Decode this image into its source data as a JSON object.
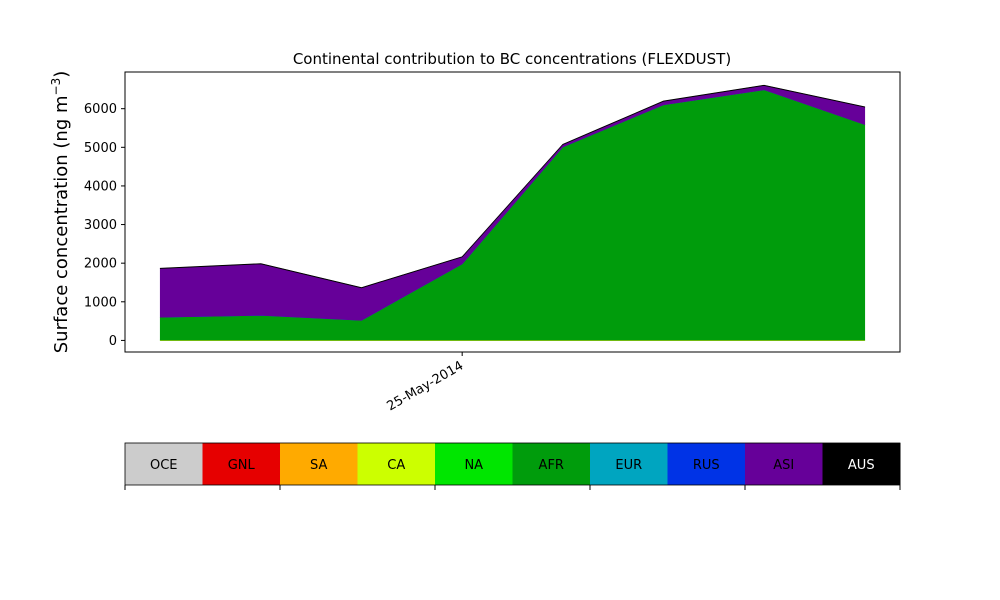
{
  "chart_data": {
    "type": "area",
    "stacked": true,
    "title": "Continental contribution to BC concentrations (FLEXDUST)",
    "ylabel": "Surface concentration (ng m",
    "ylabel_superscript": "−3",
    "ylabel_close": ")",
    "ylim": [
      -300,
      6950
    ],
    "yticks": [
      0,
      1000,
      2000,
      3000,
      4000,
      5000,
      6000
    ],
    "ytick_labels": [
      "0",
      "1000",
      "2000",
      "3000",
      "4000",
      "5000",
      "6000"
    ],
    "x": [
      "22-May-2014",
      "23-May-2014",
      "24-May-2014",
      "25-May-2014",
      "26-May-2014",
      "27-May-2014",
      "28-May-2014",
      "29-May-2014"
    ],
    "xlim": [
      "21.65-May-2014",
      "29.35-May-2014"
    ],
    "xticks": [
      "25-May-2014"
    ],
    "xtick_labels": [
      "25-May-2014"
    ],
    "series": [
      {
        "name": "OCE",
        "color": "#cccccc",
        "values": [
          0,
          0,
          0,
          0,
          0,
          0,
          0,
          0
        ]
      },
      {
        "name": "GNL",
        "color": "#e60000",
        "values": [
          0,
          0,
          0,
          0,
          0,
          0,
          0,
          0
        ]
      },
      {
        "name": "SA",
        "color": "#ffaa00",
        "values": [
          0,
          0,
          0,
          0,
          0,
          0,
          0,
          0
        ]
      },
      {
        "name": "CA",
        "color": "#ccff00",
        "values": [
          5,
          5,
          5,
          5,
          5,
          5,
          5,
          5
        ]
      },
      {
        "name": "NA",
        "color": "#00e600",
        "values": [
          5,
          5,
          5,
          5,
          5,
          5,
          5,
          5
        ]
      },
      {
        "name": "AFR",
        "color": "#009c0c",
        "values": [
          590,
          640,
          510,
          1970,
          5000,
          6090,
          6480,
          5580
        ]
      },
      {
        "name": "EUR",
        "color": "#00a5c0",
        "values": [
          0,
          0,
          0,
          0,
          0,
          0,
          0,
          0
        ]
      },
      {
        "name": "RUS",
        "color": "#0033e6",
        "values": [
          0,
          0,
          0,
          0,
          0,
          0,
          0,
          0
        ]
      },
      {
        "name": "ASI",
        "color": "#660099",
        "values": [
          1260,
          1330,
          840,
          180,
          60,
          90,
          110,
          450
        ]
      },
      {
        "name": "AUS",
        "color": "#000000",
        "values": [
          10,
          10,
          10,
          10,
          10,
          10,
          10,
          10
        ]
      }
    ]
  }
}
